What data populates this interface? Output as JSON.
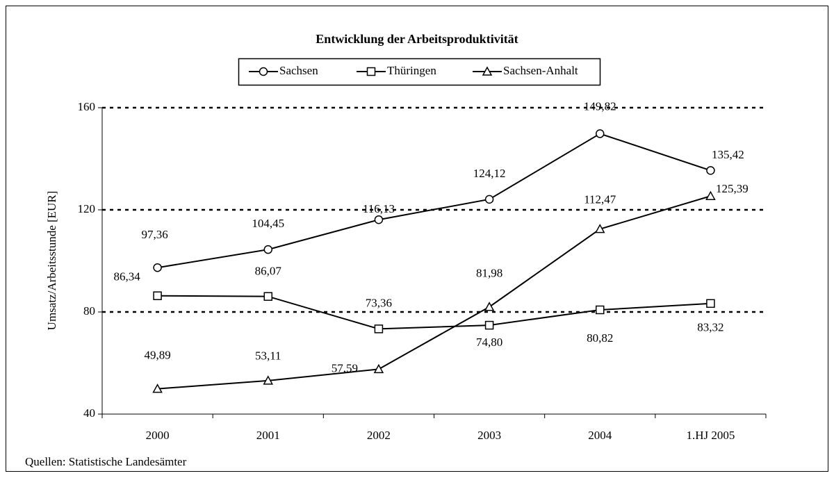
{
  "chart_data": {
    "type": "line",
    "title": "Entwicklung der Arbeitsproduktivität",
    "y_label": "Umsatz/Arbeitsstunde [EUR]",
    "source": "Quellen: Statistische Landesämter",
    "categories": [
      "2000",
      "2001",
      "2002",
      "2003",
      "2004",
      "1.HJ 2005"
    ],
    "series": [
      {
        "name": "Sachsen",
        "color": "#000000",
        "marker": "circle",
        "values": [
          97.36,
          104.45,
          116.13,
          124.12,
          149.82,
          135.42
        ],
        "value_labels": [
          "97,36",
          "104,45",
          "116,13",
          "124,12",
          "149,82",
          "135,42"
        ]
      },
      {
        "name": "Thüringen",
        "color": "#000000",
        "marker": "square",
        "values": [
          86.34,
          86.07,
          73.36,
          74.8,
          80.82,
          83.32
        ],
        "value_labels": [
          "86,34",
          "86,07",
          "73,36",
          "74,80",
          "80,82",
          "83,32"
        ]
      },
      {
        "name": "Sachsen-Anhalt",
        "color": "#000000",
        "marker": "triangle",
        "values": [
          49.89,
          53.11,
          57.59,
          81.98,
          112.47,
          125.39
        ],
        "value_labels": [
          "49,89",
          "53,11",
          "57,59",
          "81,98",
          "112,47",
          "125,39"
        ]
      }
    ],
    "ylim": [
      40,
      160
    ],
    "yticks": [
      40,
      80,
      120,
      160
    ],
    "grid": true,
    "legend": "top"
  }
}
